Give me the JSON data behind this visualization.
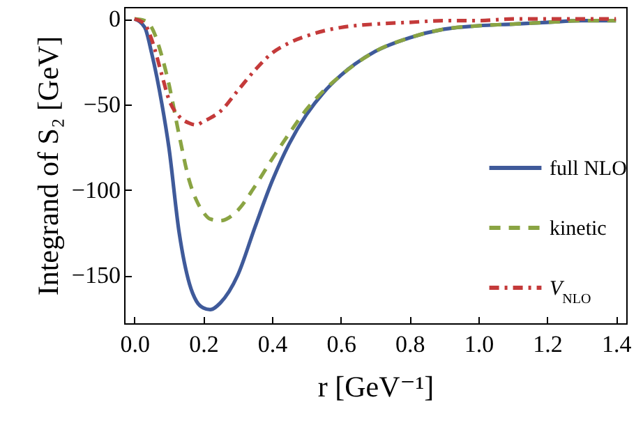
{
  "chart_data": {
    "type": "line",
    "xlabel": "r [GeV⁻¹]",
    "ylabel": "Integrand of S₂ [GeV]",
    "xlim": [
      -0.03,
      1.43
    ],
    "xticks": [
      {
        "value": 0,
        "label": "0.0"
      },
      {
        "value": 0.2,
        "label": "0.2"
      },
      {
        "value": 0.4,
        "label": "0.4"
      },
      {
        "value": 0.6,
        "label": "0.6"
      },
      {
        "value": 0.8,
        "label": "0.8"
      },
      {
        "value": 1,
        "label": "1.0"
      },
      {
        "value": 1.2,
        "label": "1.2"
      },
      {
        "value": 1.4,
        "label": "1.4"
      }
    ],
    "ylim": [
      -178,
      7
    ],
    "yticks": [
      -150,
      -100,
      -50,
      0
    ],
    "grid": false,
    "legend": "right",
    "x": [
      0,
      0.03,
      0.05,
      0.08,
      0.1,
      0.13,
      0.16,
      0.18,
      0.2,
      0.22,
      0.25,
      0.3,
      0.35,
      0.4,
      0.45,
      0.5,
      0.55,
      0.6,
      0.7,
      0.8,
      0.9,
      1.0,
      1.1,
      1.2,
      1.3,
      1.4
    ],
    "series": [
      {
        "name": "full NLO",
        "color": "#3f5a9a",
        "line_style": "solid",
        "values": [
          0,
          -5,
          -20,
          -50,
          -75,
          -125,
          -155,
          -165,
          -169,
          -170,
          -166,
          -150,
          -122,
          -95,
          -73,
          -56,
          -43,
          -33,
          -19,
          -11,
          -6,
          -4,
          -3,
          -2,
          -1,
          -1
        ]
      },
      {
        "name": "kinetic",
        "color": "#8aa443",
        "line_style": "dashed",
        "values": [
          0,
          -1,
          -5,
          -22,
          -38,
          -68,
          -95,
          -106,
          -113,
          -117,
          -118,
          -112,
          -98,
          -82,
          -67,
          -53,
          -42,
          -33,
          -19,
          -11,
          -6,
          -4,
          -3,
          -2,
          -1,
          -1
        ]
      },
      {
        "name": "V$_{NLO}$",
        "color": "#c43a3a",
        "line_style": "dashdot",
        "values": [
          0,
          -3,
          -12,
          -33,
          -47,
          -57,
          -61,
          -62,
          -60,
          -58,
          -54,
          -42,
          -30,
          -20,
          -14,
          -10,
          -7,
          -5,
          -3,
          -2,
          -1,
          -1,
          0,
          0,
          0,
          0
        ]
      }
    ]
  }
}
